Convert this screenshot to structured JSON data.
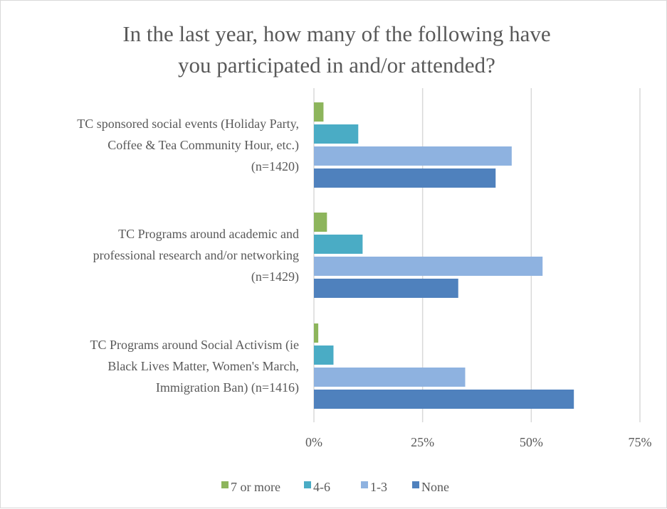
{
  "chart_data": {
    "type": "bar",
    "orientation": "horizontal",
    "title_lines": [
      "In the last year, how many of the following have",
      "you participated in and/or attended?"
    ],
    "categories": [
      {
        "lines": [
          "TC sponsored social events (Holiday Party,",
          "Coffee & Tea Community Hour, etc.)",
          "(n=1420)"
        ]
      },
      {
        "lines": [
          "TC Programs around academic and",
          "professional research and/or networking",
          "(n=1429)"
        ]
      },
      {
        "lines": [
          "TC Programs around Social Activism (ie",
          "Black Lives Matter, Women's March,",
          "Immigration Ban) (n=1416)"
        ]
      }
    ],
    "series": [
      {
        "name": "7 or more",
        "color": "#8db55c",
        "values": [
          2.2,
          3.0,
          1.0
        ]
      },
      {
        "name": "4-6",
        "color": "#4aacc5",
        "values": [
          10.2,
          11.2,
          4.5
        ]
      },
      {
        "name": "1-3",
        "color": "#8eb2e0",
        "values": [
          45.5,
          52.6,
          34.8
        ]
      },
      {
        "name": "None",
        "color": "#4f81bd",
        "values": [
          41.8,
          33.2,
          59.8
        ]
      }
    ],
    "xlim": [
      0,
      75
    ],
    "ticks": [
      {
        "value": 0,
        "label": "0%"
      },
      {
        "value": 25,
        "label": "25%"
      },
      {
        "value": 50,
        "label": "50%"
      },
      {
        "value": 75,
        "label": "75%"
      }
    ],
    "grid": true,
    "legend_position": "bottom",
    "grid_color": "#d9d9d9",
    "text_color": "#595959"
  }
}
